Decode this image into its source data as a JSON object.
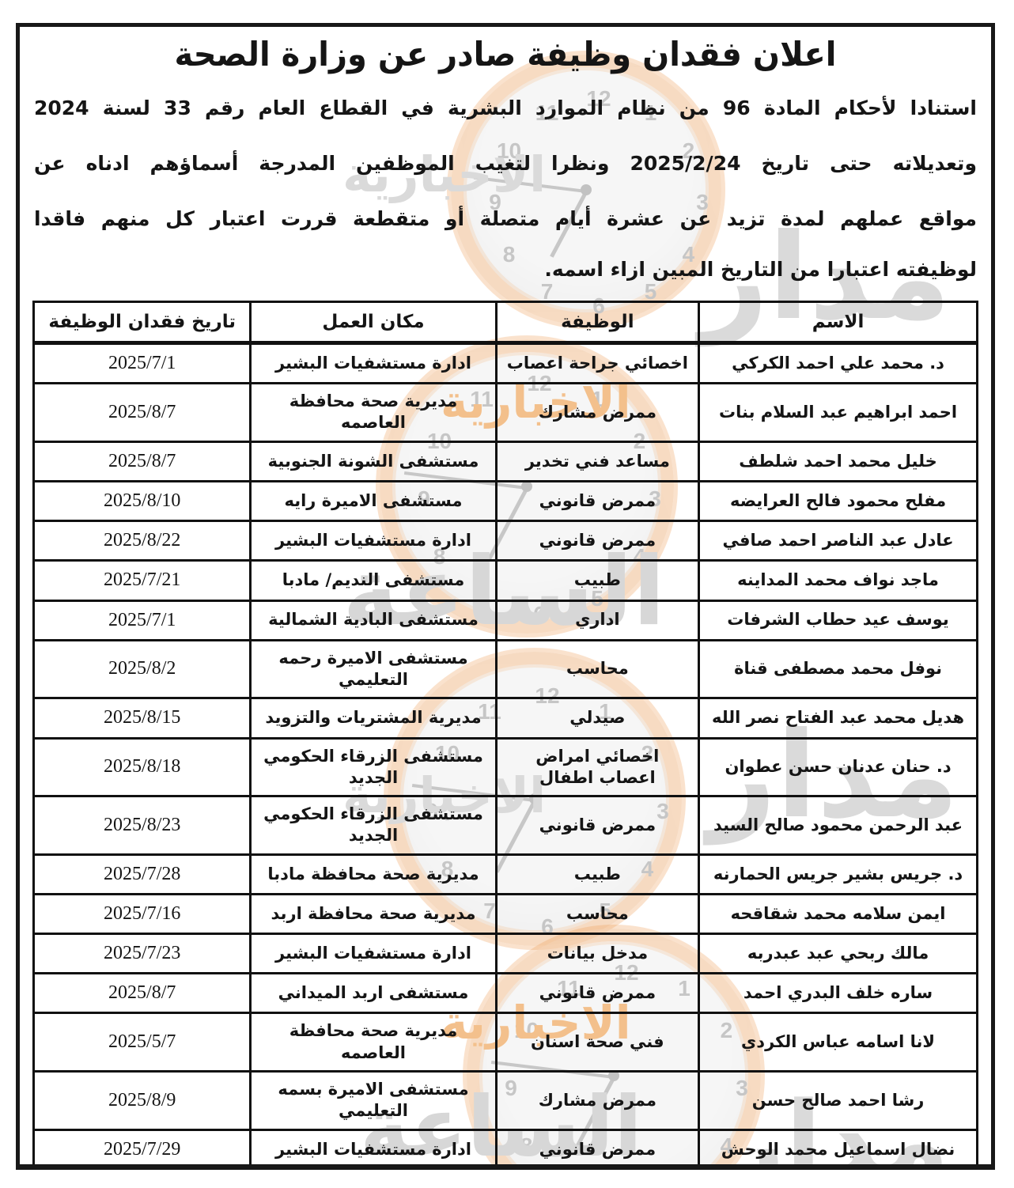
{
  "announcement": {
    "title": "اعلان فقدان وظيفة صادر عن وزارة الصحة",
    "intro_lines": [
      "استنادا لأحكام المادة 96 من نظام الموارد البشرية في القطاع العام رقم 33 لسنة 2024",
      "وتعديلاته حتى تاريخ 2025/2/24 ونظرا لتغيب الموظفين المدرجة أسماؤهم ادناه عن",
      "مواقع عملهم لمدة تزيد عن عشرة أيام متصلة أو متقطعة قررت اعتبار كل منهم فاقدا",
      "لوظيفته اعتبارا من التاريخ المبين ازاء اسمه."
    ]
  },
  "table": {
    "headers": [
      "الاسم",
      "الوظيفة",
      "مكان العمل",
      "تاريخ فقدان الوظيفة"
    ],
    "rows": [
      {
        "name": "د. محمد علي احمد الكركي",
        "position": "اخصائي جراحة اعصاب",
        "workplace": "ادارة مستشفيات البشير",
        "date": "2025/7/1"
      },
      {
        "name": "احمد ابراهيم عبد السلام بنات",
        "position": "ممرض مشارك",
        "workplace": "مديرية صحة محافظة العاصمه",
        "date": "2025/8/7"
      },
      {
        "name": "خليل محمد احمد شلطف",
        "position": "مساعد فني تخدير",
        "workplace": "مستشفى الشونة الجنوبية",
        "date": "2025/8/7"
      },
      {
        "name": "مفلح محمود فالح العرايضه",
        "position": "ممرض قانوني",
        "workplace": "مستشفى الاميرة رايه",
        "date": "2025/8/10"
      },
      {
        "name": "عادل عبد الناصر احمد صافي",
        "position": "ممرض قانوني",
        "workplace": "ادارة مستشفيات البشير",
        "date": "2025/8/22"
      },
      {
        "name": "ماجد نواف محمد المداينه",
        "position": "طبيب",
        "workplace": "مستشفى النديم/ مادبا",
        "date": "2025/7/21"
      },
      {
        "name": "يوسف عيد حطاب الشرفات",
        "position": "اداري",
        "workplace": "مستشفى البادية الشمالية",
        "date": "2025/7/1"
      },
      {
        "name": "نوفل محمد مصطفى قناة",
        "position": "محاسب",
        "workplace": "مستشفى الاميرة رحمه التعليمي",
        "date": "2025/8/2"
      },
      {
        "name": "هديل محمد عبد الفتاح نصر الله",
        "position": "صيدلي",
        "workplace": "مديرية المشتريات والتزويد",
        "date": "2025/8/15"
      },
      {
        "name": "د. حنان عدنان حسن عطوان",
        "position": "اخصائي امراض اعصاب اطفال",
        "workplace": "مستشفى الزرقاء الحكومي الجديد",
        "date": "2025/8/18"
      },
      {
        "name": "عبد الرحمن محمود صالح السيد",
        "position": "ممرض قانوني",
        "workplace": "مستشفى الزرقاء الحكومي الجديد",
        "date": "2025/8/23"
      },
      {
        "name": "د. جريس بشير جريس الحمارنه",
        "position": "طبيب",
        "workplace": "مديرية صحة محافظة مادبا",
        "date": "2025/7/28"
      },
      {
        "name": "ايمن سلامه محمد شقاقحه",
        "position": "محاسب",
        "workplace": "مديرية صحة محافظة اربد",
        "date": "2025/7/16"
      },
      {
        "name": "مالك ربحي عبد عبدربه",
        "position": "مدخل بيانات",
        "workplace": "ادارة مستشفيات البشير",
        "date": "2025/7/23"
      },
      {
        "name": "ساره خلف البدري احمد",
        "position": "ممرض قانوني",
        "workplace": "مستشفى اربد الميداني",
        "date": "2025/8/7"
      },
      {
        "name": "لانا اسامه عباس الكردي",
        "position": "فني صحة اسنان",
        "workplace": "مديرية صحة محافظة العاصمه",
        "date": "2025/5/7"
      },
      {
        "name": "رشا احمد صالح حسن",
        "position": "ممرض مشارك",
        "workplace": "مستشفى الاميرة بسمه التعليمي",
        "date": "2025/8/9"
      },
      {
        "name": "نضال اسماعيل محمد الوحش",
        "position": "ممرض قانوني",
        "workplace": "ادارة مستشفيات البشير",
        "date": "2025/7/29"
      }
    ]
  },
  "watermark": {
    "brand_text": "مدار",
    "brand_text2": "الساعة",
    "sub_text": "الاخبارية",
    "ring_color": "#f6cfa9",
    "digit_color": "#c6c6c6",
    "gray_text_color": "#dadada",
    "orange_text_color": "#f3c08c"
  }
}
